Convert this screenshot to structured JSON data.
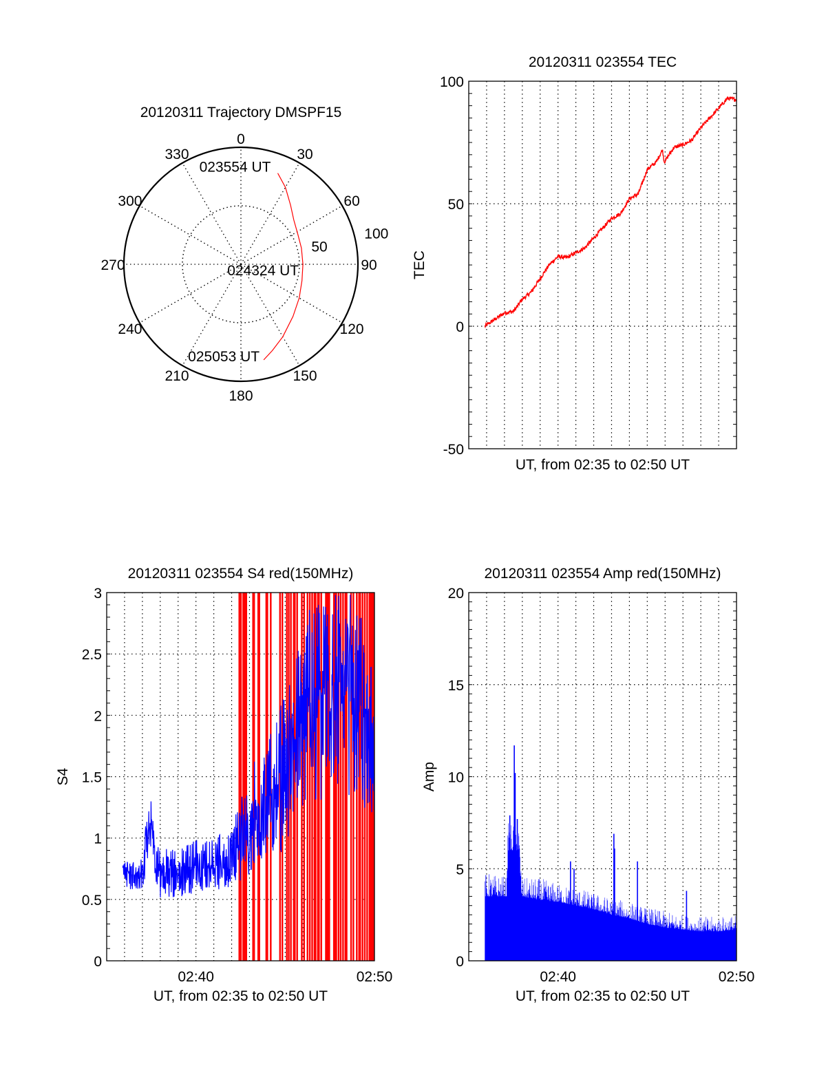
{
  "chart_data": [
    {
      "type": "polar",
      "title": "20120311 Trajectory DMSPF15",
      "rlim": [
        0,
        100
      ],
      "angle_labels": [
        "0",
        "30",
        "60",
        "90",
        "120",
        "150",
        "180",
        "210",
        "240",
        "270",
        "300",
        "330"
      ],
      "radial_labels": [
        "50",
        "100"
      ],
      "trajectory_az_r": [
        [
          22,
          84
        ],
        [
          30,
          76
        ],
        [
          40,
          66
        ],
        [
          50,
          59
        ],
        [
          62,
          55
        ],
        [
          75,
          53.5
        ],
        [
          90,
          53
        ],
        [
          105,
          54
        ],
        [
          120,
          57.5
        ],
        [
          135,
          63
        ],
        [
          150,
          71.5
        ],
        [
          160,
          78.5
        ],
        [
          166.6,
          84
        ]
      ],
      "time_labels": [
        {
          "text": "023554 UT",
          "az": 22,
          "r": 84
        },
        {
          "text": "024324 UT",
          "az": 90,
          "r": 53
        },
        {
          "text": "025053 UT",
          "az": 166.6,
          "r": 84
        }
      ],
      "colors": {
        "trajectory": "#ff0000",
        "grid": "#000000"
      }
    },
    {
      "type": "line",
      "title": "20120311 023554 TEC",
      "xlabel": "UT, from 02:35 to 02:50 UT",
      "ylabel": "TEC",
      "x_unit": "minutes after 02:35",
      "xlim": [
        0,
        15
      ],
      "ylim": [
        -50,
        100
      ],
      "yticks": [
        {
          "v": 100,
          "label": "100"
        },
        {
          "v": 50,
          "label": "50"
        },
        {
          "v": 0,
          "label": "0"
        },
        {
          "v": -50,
          "label": "-50"
        }
      ],
      "x": [
        0.9,
        1.5,
        2,
        2.5,
        3,
        3.5,
        4,
        4.5,
        5,
        5.5,
        6,
        6.5,
        7,
        7.5,
        8,
        8.5,
        9,
        9.5,
        10,
        10.5,
        10.85,
        10.95,
        11.5,
        12,
        12.5,
        13,
        13.5,
        14,
        14.5,
        15
      ],
      "y": [
        0,
        3,
        5.5,
        6,
        11,
        14,
        19.5,
        25,
        28.5,
        28,
        30,
        32,
        36,
        40,
        44,
        46,
        52,
        54,
        64,
        67,
        72,
        67,
        73,
        74,
        76,
        81,
        85,
        89,
        93,
        92.5
      ],
      "color": "#ff0000"
    },
    {
      "type": "line",
      "title": "20120311 023554 S4 red(150MHz)",
      "xlabel": "UT, from 02:35 to 02:50 UT",
      "ylabel": "S4",
      "x_unit": "minutes after 02:35",
      "xlim": [
        0,
        15
      ],
      "ylim": [
        0,
        3
      ],
      "xticks": [
        {
          "v": 5,
          "label": "02:40"
        },
        {
          "v": 15,
          "label": "02:50"
        }
      ],
      "yticks": [
        {
          "v": 0,
          "label": "0"
        },
        {
          "v": 0.5,
          "label": "0.5"
        },
        {
          "v": 1,
          "label": "1"
        },
        {
          "v": 1.5,
          "label": "1.5"
        },
        {
          "v": 2,
          "label": "2"
        },
        {
          "v": 2.5,
          "label": "2.5"
        },
        {
          "v": 3,
          "label": "3"
        }
      ],
      "series_envelope_t_lo_hi": [
        [
          0.9,
          0.6,
          0.9
        ],
        [
          1.5,
          0.55,
          0.85
        ],
        [
          2.1,
          0.6,
          0.9
        ],
        [
          2.2,
          0.8,
          1.2
        ],
        [
          2.5,
          0.85,
          1.43
        ],
        [
          2.65,
          0.7,
          1.0
        ],
        [
          3,
          0.5,
          0.9
        ],
        [
          3.5,
          0.5,
          0.95
        ],
        [
          4,
          0.5,
          0.9
        ],
        [
          5,
          0.55,
          1.0
        ],
        [
          6,
          0.55,
          1.0
        ],
        [
          6.5,
          0.6,
          1.05
        ],
        [
          7,
          0.6,
          1.1
        ],
        [
          7.5,
          0.65,
          1.3
        ],
        [
          8,
          0.7,
          1.55
        ],
        [
          8.5,
          0.8,
          1.7
        ],
        [
          9,
          0.8,
          1.8
        ],
        [
          9.5,
          0.8,
          2.0
        ],
        [
          10,
          0.9,
          2.2
        ],
        [
          10.5,
          1.1,
          2.5
        ],
        [
          11,
          1.1,
          2.6
        ],
        [
          11.5,
          1.3,
          3.0
        ],
        [
          12,
          1.3,
          3.0
        ],
        [
          12.5,
          1.4,
          3.0
        ],
        [
          13,
          1.4,
          3.0
        ],
        [
          13.5,
          1.3,
          3.0
        ],
        [
          14,
          1.2,
          3.0
        ],
        [
          14.5,
          1.2,
          2.7
        ],
        [
          15,
          1.2,
          2.5
        ]
      ],
      "red_bars_t": [
        7.43,
        7.52,
        7.65,
        7.74,
        7.82,
        8.2,
        8.26,
        8.49,
        8.55,
        8.94,
        9.0,
        9.19,
        9.71,
        9.84,
        10.09,
        10.2,
        10.32,
        10.48,
        10.54,
        10.67,
        10.93,
        11.06,
        11.25,
        11.38,
        11.51,
        11.64,
        11.7,
        11.83,
        11.89,
        12.02,
        12.28,
        12.34,
        12.41,
        12.47,
        12.73,
        12.79,
        12.86,
        12.99,
        13.11,
        13.24,
        13.37,
        13.44,
        13.69,
        13.82,
        14.01,
        14.14,
        14.2,
        14.33,
        14.46,
        14.59,
        14.72,
        14.78,
        14.85,
        14.91,
        14.97
      ],
      "colors": {
        "series": "#0000ff",
        "bars": "#ff0000"
      }
    },
    {
      "type": "bar",
      "title": "20120311 023554 Amp red(150MHz)",
      "xlabel": "UT, from 02:35 to 02:50 UT",
      "ylabel": "Amp",
      "x_unit": "minutes after 02:35",
      "xlim": [
        0,
        15
      ],
      "ylim": [
        0,
        20
      ],
      "xticks": [
        {
          "v": 5,
          "label": "02:40"
        },
        {
          "v": 15,
          "label": "02:50"
        }
      ],
      "yticks": [
        {
          "v": 0,
          "label": "0"
        },
        {
          "v": 5,
          "label": "5"
        },
        {
          "v": 10,
          "label": "10"
        },
        {
          "v": 15,
          "label": "15"
        },
        {
          "v": 20,
          "label": "20"
        }
      ],
      "envelope_t_base_top": [
        [
          0.9,
          3.5,
          4.8
        ],
        [
          2.1,
          3.5,
          4.6
        ],
        [
          2.2,
          6.0,
          7.5
        ],
        [
          2.8,
          6.0,
          7.5
        ],
        [
          2.95,
          3.5,
          4.5
        ],
        [
          4,
          3.3,
          4.5
        ],
        [
          5,
          3.2,
          4.2
        ],
        [
          6,
          3.0,
          4.0
        ],
        [
          7,
          2.8,
          3.7
        ],
        [
          8,
          2.5,
          3.4
        ],
        [
          9,
          2.3,
          3.2
        ],
        [
          10,
          2.0,
          2.9
        ],
        [
          11,
          1.8,
          2.7
        ],
        [
          12,
          1.7,
          2.5
        ],
        [
          13,
          1.6,
          2.4
        ],
        [
          14,
          1.6,
          2.4
        ],
        [
          15,
          1.7,
          2.5
        ]
      ],
      "spikes_t_value": [
        [
          2.3,
          7.9
        ],
        [
          2.55,
          11.7
        ],
        [
          2.6,
          10.2
        ],
        [
          2.72,
          7.7
        ],
        [
          8.13,
          6.9
        ],
        [
          8.17,
          6.1
        ],
        [
          9.45,
          5.4
        ],
        [
          5.7,
          5.4
        ],
        [
          5.9,
          5.0
        ],
        [
          12.2,
          3.8
        ]
      ],
      "color": "#0000ff"
    }
  ]
}
